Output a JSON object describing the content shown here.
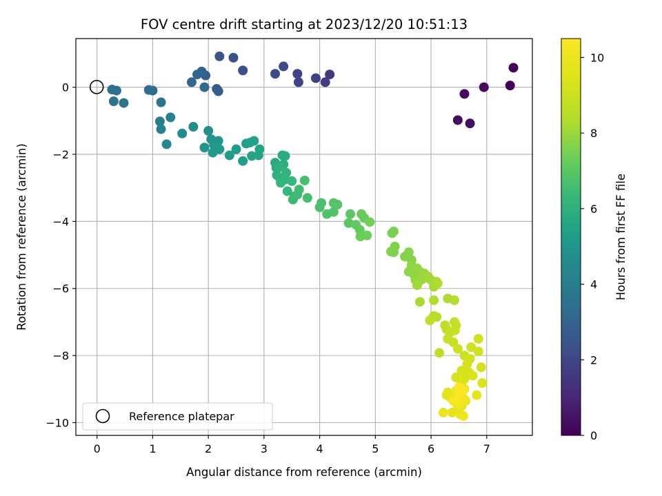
{
  "chart_data": {
    "type": "scatter",
    "title": "FOV centre drift starting at 2023/12/20 10:51:13",
    "xlabel": "Angular distance from reference (arcmin)",
    "ylabel": "Rotation from reference (arcmin)",
    "xlim": [
      -0.38,
      7.82
    ],
    "ylim": [
      -10.38,
      1.45
    ],
    "xticks": [
      0,
      1,
      2,
      3,
      4,
      5,
      6,
      7
    ],
    "yticks": [
      -10,
      -8,
      -6,
      -4,
      -2,
      0
    ],
    "grid": true,
    "colormap": "viridis",
    "colorbar": {
      "label": "Hours from first FF file",
      "range": [
        0,
        10.5
      ],
      "ticks": [
        0,
        2,
        4,
        6,
        8,
        10
      ]
    },
    "reference": {
      "label": "Reference platepar",
      "x": 0,
      "y": 0
    },
    "legend_position": "lower-left",
    "series": [
      {
        "points": [
          [
            7.48,
            0.58,
            0.05
          ],
          [
            7.42,
            0.05,
            0.12
          ],
          [
            6.95,
            0.0,
            0.2
          ],
          [
            6.6,
            -0.2,
            0.25
          ],
          [
            6.48,
            -0.98,
            0.35
          ],
          [
            6.7,
            -1.08,
            0.4
          ],
          [
            4.18,
            0.38,
            1.6
          ],
          [
            4.1,
            0.15,
            1.7
          ],
          [
            3.93,
            0.27,
            1.8
          ],
          [
            3.6,
            0.4,
            1.9
          ],
          [
            3.62,
            0.15,
            2.0
          ],
          [
            3.35,
            0.62,
            2.1
          ],
          [
            3.2,
            0.4,
            2.2
          ],
          [
            2.62,
            0.5,
            2.3
          ],
          [
            2.45,
            0.88,
            2.4
          ],
          [
            2.2,
            0.92,
            2.5
          ],
          [
            2.15,
            -0.05,
            2.6
          ],
          [
            2.18,
            -0.12,
            2.7
          ],
          [
            1.95,
            0.35,
            2.8
          ],
          [
            1.88,
            0.47,
            2.9
          ],
          [
            1.8,
            0.38,
            3.0
          ],
          [
            1.7,
            0.15,
            3.1
          ],
          [
            1.93,
            0.0,
            3.2
          ],
          [
            1.0,
            -0.1,
            3.3
          ],
          [
            0.93,
            -0.08,
            3.4
          ],
          [
            0.35,
            -0.1,
            3.5
          ],
          [
            0.27,
            -0.07,
            3.5
          ],
          [
            0.3,
            -0.42,
            3.6
          ],
          [
            0.48,
            -0.47,
            3.6
          ],
          [
            1.15,
            -0.45,
            3.7
          ],
          [
            1.13,
            -1.02,
            4.0
          ],
          [
            1.15,
            -1.25,
            4.1
          ],
          [
            1.32,
            -0.9,
            4.2
          ],
          [
            1.25,
            -1.7,
            4.4
          ],
          [
            1.53,
            -1.38,
            4.5
          ],
          [
            1.73,
            -1.18,
            4.6
          ],
          [
            2.0,
            -1.3,
            4.7
          ],
          [
            2.05,
            -1.55,
            4.8
          ],
          [
            1.93,
            -1.8,
            4.9
          ],
          [
            2.1,
            -1.72,
            5.0
          ],
          [
            2.18,
            -1.6,
            5.0
          ],
          [
            2.2,
            -1.85,
            5.1
          ],
          [
            2.08,
            -1.95,
            5.1
          ],
          [
            2.38,
            -2.03,
            5.2
          ],
          [
            2.5,
            -1.85,
            5.2
          ],
          [
            2.62,
            -2.2,
            5.3
          ],
          [
            2.68,
            -1.68,
            5.3
          ],
          [
            2.75,
            -1.65,
            5.4
          ],
          [
            2.82,
            -1.6,
            5.4
          ],
          [
            2.9,
            -2.03,
            5.5
          ],
          [
            2.92,
            -1.85,
            5.5
          ],
          [
            2.78,
            -2.05,
            5.6
          ],
          [
            3.2,
            -2.25,
            5.7
          ],
          [
            3.22,
            -2.4,
            5.8
          ],
          [
            3.33,
            -2.03,
            5.8
          ],
          [
            3.38,
            -2.05,
            5.9
          ],
          [
            3.35,
            -2.3,
            5.9
          ],
          [
            3.28,
            -2.38,
            6.0
          ],
          [
            3.23,
            -2.62,
            6.0
          ],
          [
            3.28,
            -2.7,
            6.1
          ],
          [
            3.4,
            -2.55,
            6.1
          ],
          [
            3.38,
            -2.75,
            6.2
          ],
          [
            3.3,
            -2.85,
            6.2
          ],
          [
            3.5,
            -2.8,
            6.3
          ],
          [
            3.42,
            -3.1,
            6.3
          ],
          [
            3.55,
            -3.25,
            6.4
          ],
          [
            3.52,
            -3.35,
            6.4
          ],
          [
            3.6,
            -3.2,
            6.5
          ],
          [
            3.63,
            -3.05,
            6.5
          ],
          [
            3.73,
            -2.78,
            6.6
          ],
          [
            3.78,
            -3.3,
            6.6
          ],
          [
            4.03,
            -3.45,
            6.7
          ],
          [
            4.0,
            -3.58,
            6.7
          ],
          [
            4.13,
            -3.78,
            6.8
          ],
          [
            4.25,
            -3.72,
            6.8
          ],
          [
            4.25,
            -3.45,
            6.9
          ],
          [
            4.32,
            -3.5,
            6.9
          ],
          [
            4.55,
            -3.78,
            7.0
          ],
          [
            4.52,
            -4.05,
            7.0
          ],
          [
            4.65,
            -4.1,
            7.1
          ],
          [
            4.72,
            -4.25,
            7.1
          ],
          [
            4.75,
            -3.78,
            7.2
          ],
          [
            4.8,
            -3.9,
            7.2
          ],
          [
            4.73,
            -4.45,
            7.3
          ],
          [
            4.85,
            -4.42,
            7.3
          ],
          [
            4.9,
            -4.02,
            7.4
          ],
          [
            5.3,
            -4.35,
            7.5
          ],
          [
            5.33,
            -4.3,
            7.5
          ],
          [
            5.35,
            -4.75,
            7.6
          ],
          [
            5.28,
            -4.9,
            7.6
          ],
          [
            5.33,
            -4.92,
            7.6
          ],
          [
            5.53,
            -5.05,
            7.7
          ],
          [
            5.6,
            -4.92,
            7.7
          ],
          [
            5.65,
            -5.15,
            7.7
          ],
          [
            5.65,
            -5.3,
            7.8
          ],
          [
            5.6,
            -5.5,
            7.8
          ],
          [
            5.7,
            -5.6,
            7.8
          ],
          [
            5.75,
            -5.4,
            7.9
          ],
          [
            5.8,
            -5.5,
            7.9
          ],
          [
            5.72,
            -5.75,
            7.9
          ],
          [
            5.78,
            -5.8,
            8.0
          ],
          [
            5.88,
            -5.55,
            8.0
          ],
          [
            5.85,
            -5.72,
            8.0
          ],
          [
            5.95,
            -5.65,
            8.1
          ],
          [
            6.0,
            -5.75,
            8.1
          ],
          [
            5.75,
            -5.9,
            8.1
          ],
          [
            5.8,
            -6.4,
            8.2
          ],
          [
            6.05,
            -5.95,
            8.2
          ],
          [
            6.1,
            -5.8,
            8.2
          ],
          [
            6.12,
            -5.85,
            8.3
          ],
          [
            6.05,
            -6.35,
            8.3
          ],
          [
            6.3,
            -6.3,
            8.3
          ],
          [
            6.42,
            -6.35,
            8.4
          ],
          [
            6.05,
            -6.82,
            8.5
          ],
          [
            6.1,
            -6.85,
            8.5
          ],
          [
            5.98,
            -6.95,
            8.6
          ],
          [
            6.15,
            -7.92,
            8.6
          ],
          [
            6.25,
            -7.1,
            8.7
          ],
          [
            6.28,
            -7.22,
            8.7
          ],
          [
            6.35,
            -7.3,
            8.8
          ],
          [
            6.42,
            -7.0,
            8.8
          ],
          [
            6.45,
            -7.1,
            8.8
          ],
          [
            6.43,
            -7.25,
            8.9
          ],
          [
            6.3,
            -7.5,
            8.9
          ],
          [
            6.4,
            -7.6,
            8.9
          ],
          [
            6.48,
            -7.8,
            9.0
          ],
          [
            6.6,
            -8.0,
            9.0
          ],
          [
            6.72,
            -7.75,
            9.0
          ],
          [
            6.85,
            -7.5,
            9.1
          ],
          [
            6.85,
            -7.88,
            9.1
          ],
          [
            6.7,
            -8.1,
            9.1
          ],
          [
            6.65,
            -8.25,
            9.2
          ],
          [
            6.9,
            -8.35,
            9.2
          ],
          [
            6.55,
            -8.45,
            9.2
          ],
          [
            6.68,
            -8.5,
            9.3
          ],
          [
            6.6,
            -8.7,
            9.3
          ],
          [
            6.45,
            -8.65,
            9.3
          ],
          [
            6.55,
            -8.8,
            9.4
          ],
          [
            6.92,
            -8.82,
            9.4
          ],
          [
            6.75,
            -8.6,
            9.4
          ],
          [
            6.55,
            -9.0,
            9.5
          ],
          [
            6.5,
            -9.1,
            9.5
          ],
          [
            6.6,
            -9.0,
            9.6
          ],
          [
            6.3,
            -9.1,
            9.6
          ],
          [
            6.35,
            -9.25,
            9.6
          ],
          [
            6.28,
            -9.18,
            9.7
          ],
          [
            6.45,
            -9.35,
            9.7
          ],
          [
            6.62,
            -9.35,
            9.7
          ],
          [
            6.82,
            -9.18,
            9.7
          ],
          [
            6.55,
            -9.5,
            9.8
          ],
          [
            6.48,
            -9.6,
            9.8
          ],
          [
            6.38,
            -9.7,
            9.8
          ],
          [
            6.22,
            -9.7,
            9.9
          ],
          [
            6.52,
            -9.75,
            9.9
          ],
          [
            6.58,
            -9.8,
            10.0
          ],
          [
            6.45,
            -9.05,
            10.0
          ],
          [
            6.55,
            -9.2,
            10.1
          ],
          [
            6.6,
            -9.3,
            10.1
          ],
          [
            6.5,
            -9.45,
            10.2
          ],
          [
            6.45,
            -9.4,
            10.2
          ],
          [
            6.4,
            -9.35,
            10.3
          ],
          [
            6.48,
            -9.25,
            10.3
          ],
          [
            6.52,
            -9.1,
            10.4
          ],
          [
            6.58,
            -9.02,
            10.4
          ],
          [
            6.5,
            -8.95,
            10.5
          ]
        ]
      }
    ]
  }
}
